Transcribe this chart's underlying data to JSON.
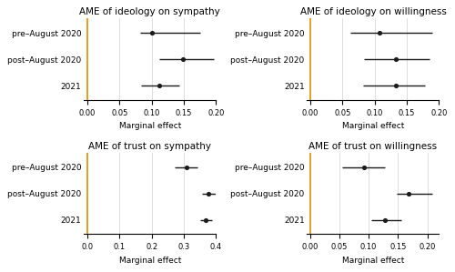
{
  "panels": [
    {
      "title": "AME of ideology on sympathy",
      "xlabel": "Marginal effect",
      "xlim": [
        -0.005,
        0.2
      ],
      "xticks": [
        0.0,
        0.05,
        0.1,
        0.15,
        0.2
      ],
      "xticklabels": [
        "0.00",
        "0.05",
        "0.10",
        "0.15",
        "0.20"
      ],
      "vline": 0.0,
      "rows": [
        {
          "label": "pre–August 2020",
          "estimate": 0.1,
          "ci_low": 0.082,
          "ci_high": 0.175
        },
        {
          "label": "post–August 2020",
          "estimate": 0.148,
          "ci_low": 0.112,
          "ci_high": 0.197
        },
        {
          "label": "2021",
          "estimate": 0.112,
          "ci_low": 0.083,
          "ci_high": 0.143
        }
      ]
    },
    {
      "title": "AME of ideology on willingness",
      "xlabel": "Marginal effect",
      "xlim": [
        -0.005,
        0.2
      ],
      "xticks": [
        0.0,
        0.05,
        0.1,
        0.15,
        0.2
      ],
      "xticklabels": [
        "0.00",
        "0.05",
        "0.10",
        "0.15",
        "0.20"
      ],
      "vline": 0.0,
      "rows": [
        {
          "label": "pre–August 2020",
          "estimate": 0.108,
          "ci_low": 0.062,
          "ci_high": 0.19
        },
        {
          "label": "post–August 2020",
          "estimate": 0.133,
          "ci_low": 0.083,
          "ci_high": 0.185
        },
        {
          "label": "2021",
          "estimate": 0.133,
          "ci_low": 0.082,
          "ci_high": 0.178
        }
      ]
    },
    {
      "title": "AME of trust on sympathy",
      "xlabel": "Marginal effect",
      "xlim": [
        -0.01,
        0.4
      ],
      "xticks": [
        0.0,
        0.1,
        0.2,
        0.3,
        0.4
      ],
      "xticklabels": [
        "0.0",
        "0.1",
        "0.2",
        "0.3",
        "0.4"
      ],
      "vline": 0.0,
      "rows": [
        {
          "label": "pre–August 2020",
          "estimate": 0.308,
          "ci_low": 0.272,
          "ci_high": 0.342
        },
        {
          "label": "post–August 2020",
          "estimate": 0.375,
          "ci_low": 0.358,
          "ci_high": 0.398
        },
        {
          "label": "2021",
          "estimate": 0.368,
          "ci_low": 0.35,
          "ci_high": 0.388
        }
      ]
    },
    {
      "title": "AME of trust on willingness",
      "xlabel": "Marginal effect",
      "xlim": [
        -0.005,
        0.22
      ],
      "xticks": [
        0.0,
        0.05,
        0.1,
        0.15,
        0.2
      ],
      "xticklabels": [
        "0.00",
        "0.05",
        "0.10",
        "0.15",
        "0.20"
      ],
      "vline": 0.0,
      "rows": [
        {
          "label": "pre–August 2020",
          "estimate": 0.092,
          "ci_low": 0.055,
          "ci_high": 0.128
        },
        {
          "label": "post–August 2020",
          "estimate": 0.168,
          "ci_low": 0.148,
          "ci_high": 0.208
        },
        {
          "label": "2021",
          "estimate": 0.128,
          "ci_low": 0.105,
          "ci_high": 0.155
        }
      ]
    }
  ],
  "vline_color": "#E8A020",
  "dot_color": "#1a1a1a",
  "ci_color": "#1a1a1a",
  "grid_color": "#d0d0d0",
  "background_color": "#ffffff",
  "title_fontsize": 7.5,
  "tick_fontsize": 6.0,
  "label_fontsize": 6.5,
  "dot_size": 14,
  "linewidth": 1.0,
  "vline_lw": 1.4
}
